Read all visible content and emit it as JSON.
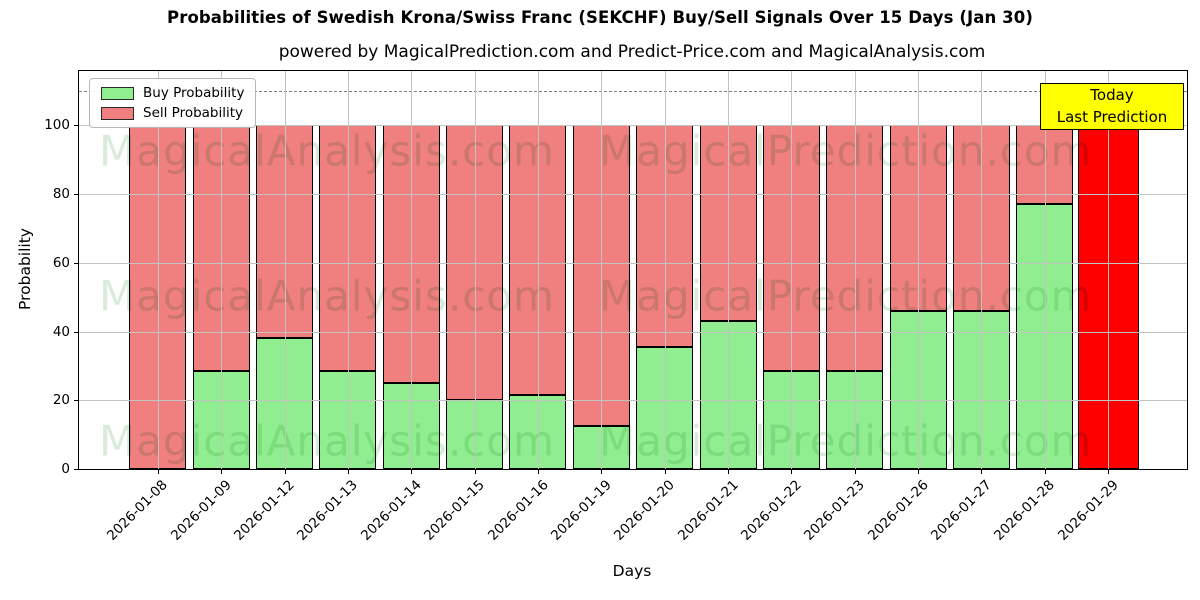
{
  "title": "Probabilities of Swedish Krona/Swiss Franc (SEKCHF) Buy/Sell Signals Over 15 Days (Jan 30)",
  "subtitle": "powered by MagicalPrediction.com and Predict-Price.com and MagicalAnalysis.com",
  "legend": {
    "items": [
      {
        "label": "Buy Probability",
        "color": "#90EE90"
      },
      {
        "label": "Sell Probability",
        "color": "#F08080"
      }
    ]
  },
  "annotation_box": {
    "lines": [
      "Today",
      "Last Prediction"
    ],
    "bg": "#FFFF00"
  },
  "axes": {
    "ylabel": "Probability",
    "xlabel": "Days",
    "yticks": [
      0,
      20,
      40,
      60,
      80,
      100
    ]
  },
  "watermark": {
    "texts": [
      "MagicalAnalysis.com",
      "MagicalPrediction.com"
    ],
    "color": "#d9ecd9"
  },
  "chart_data": {
    "type": "bar",
    "stacked": true,
    "title": "Probabilities of Swedish Krona/Swiss Franc (SEKCHF) Buy/Sell Signals Over 15 Days (Jan 30)",
    "xlabel": "Days",
    "ylabel": "Probability",
    "ylim": [
      0,
      115.8
    ],
    "dashed_line_y": 110,
    "grid": true,
    "legend_position": "upper left",
    "categories": [
      "2026-01-08",
      "2026-01-09",
      "2026-01-12",
      "2026-01-13",
      "2026-01-14",
      "2026-01-15",
      "2026-01-16",
      "2026-01-19",
      "2026-01-20",
      "2026-01-21",
      "2026-01-22",
      "2026-01-23",
      "2026-01-26",
      "2026-01-27",
      "2026-01-28",
      "2026-01-29"
    ],
    "series": [
      {
        "name": "Buy Probability",
        "color": "#90EE90",
        "values": [
          0,
          28.5,
          38,
          28.5,
          25,
          20,
          21.5,
          12.5,
          35.5,
          43,
          28.5,
          28.5,
          46,
          46,
          77,
          0
        ]
      },
      {
        "name": "Sell Probability",
        "color": "#F08080",
        "values": [
          100,
          71.5,
          62,
          71.5,
          75,
          80,
          78.5,
          87.5,
          64.5,
          57,
          71.5,
          71.5,
          54,
          54,
          23,
          100
        ]
      }
    ],
    "highlight": {
      "index": 15,
      "color": "#FF0000",
      "note": "Today / Last Prediction bar"
    }
  }
}
